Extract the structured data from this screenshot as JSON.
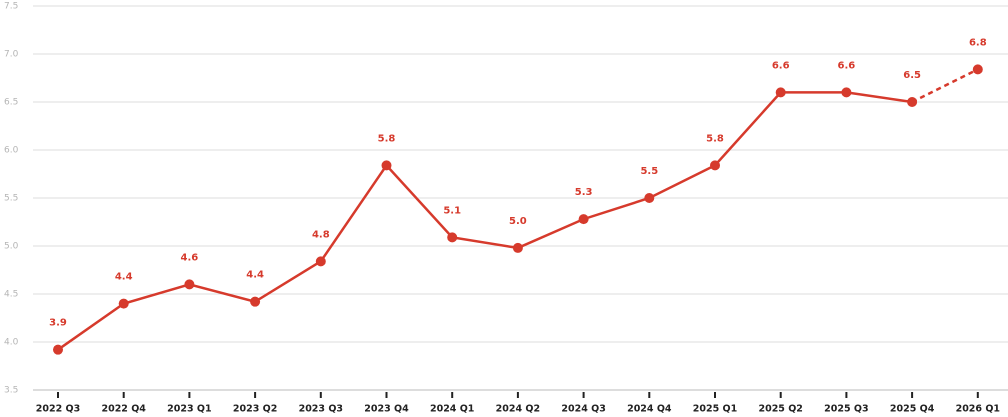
{
  "chart_data": {
    "type": "line",
    "categories": [
      "2022 Q3",
      "2022 Q4",
      "2023 Q1",
      "2023 Q2",
      "2023 Q3",
      "2023 Q4",
      "2024 Q1",
      "2024 Q2",
      "2024 Q3",
      "2024 Q4",
      "2025 Q1",
      "2025 Q2",
      "2025 Q3",
      "2025 Q4",
      "2026 Q1"
    ],
    "values": [
      3.92,
      4.4,
      4.6,
      4.42,
      4.84,
      5.84,
      5.09,
      4.98,
      5.28,
      5.5,
      5.84,
      6.6,
      6.6,
      6.5,
      6.84
    ],
    "value_labels": [
      "3.9",
      "4.4",
      "4.6",
      "4.4",
      "4.8",
      "5.8",
      "5.1",
      "5.0",
      "5.3",
      "5.5",
      "5.8",
      "6.6",
      "6.6",
      "6.5",
      "6.8"
    ],
    "color": "#d63a2c",
    "dashed_last": true,
    "ylim": [
      3.5,
      7.5
    ],
    "yticks": [
      3.5,
      {
        "value": 4,
        "label": "4.0"
      },
      4.5,
      {
        "value": 5,
        "label": "5.0"
      },
      5.5,
      {
        "value": 6,
        "label": "6.0"
      },
      6.5,
      {
        "value": 7,
        "label": "7.0"
      },
      7.5
    ],
    "grid": true
  }
}
